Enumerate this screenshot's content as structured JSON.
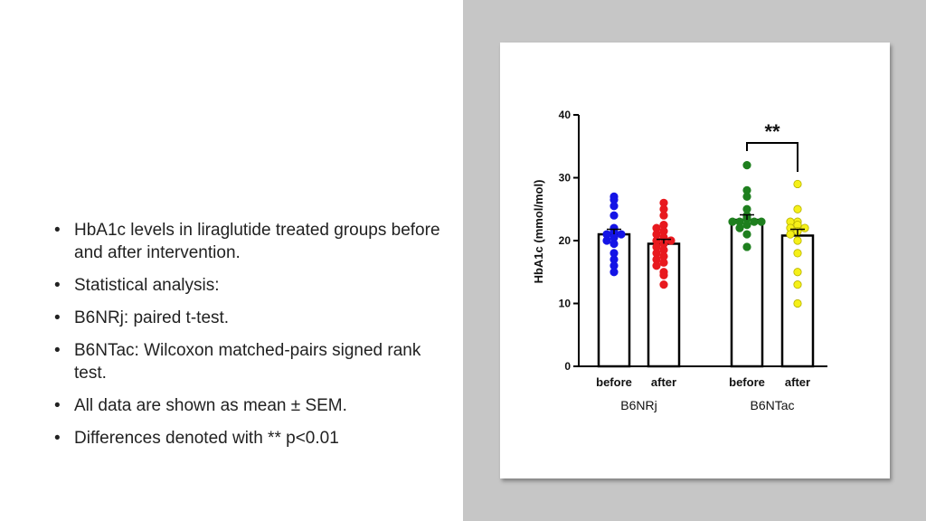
{
  "bullets": [
    "HbA1c levels in liraglutide treated groups before and after intervention.",
    "Statistical analysis:",
    "B6NRj:  paired t-test.",
    "B6NTac: Wilcoxon matched-pairs signed rank test.",
    "All data are shown as mean ± SEM.",
    "Differences denoted with ** p<0.01"
  ],
  "chart_data": {
    "type": "bar",
    "ylabel": "HbA1c (mmol/mol)",
    "ylim": [
      0,
      40
    ],
    "yticks": [
      "0",
      "10",
      "20",
      "30",
      "40"
    ],
    "categories": [
      "before",
      "after",
      "before",
      "after"
    ],
    "groups": [
      {
        "name": "B6NRj",
        "categories": [
          "before",
          "after"
        ]
      },
      {
        "name": "B6NTac",
        "categories": [
          "before",
          "after"
        ]
      }
    ],
    "bars": [
      {
        "group": "B6NRj",
        "label": "before",
        "mean": 21.0,
        "sem": 0.8,
        "color": "#1414e6",
        "points": [
          27,
          26.5,
          25.5,
          24,
          22,
          21.5,
          21,
          21,
          20.5,
          20,
          19.5,
          18,
          17,
          16,
          15
        ]
      },
      {
        "group": "B6NRj",
        "label": "after",
        "mean": 19.5,
        "sem": 0.7,
        "color": "#e8191e",
        "points": [
          26,
          25,
          24,
          22.5,
          22,
          21.5,
          21,
          20.5,
          20,
          20,
          19.5,
          19,
          18.5,
          18,
          17.5,
          17,
          16.5,
          16,
          15,
          14.5,
          13
        ]
      },
      {
        "group": "B6NTac",
        "label": "before",
        "mean": 23.3,
        "sem": 0.8,
        "color": "#1e7f1e",
        "points": [
          32,
          28,
          27,
          25,
          24,
          23.5,
          23,
          23,
          23,
          23,
          22.5,
          22,
          21,
          19
        ]
      },
      {
        "group": "B6NTac",
        "label": "after",
        "mean": 20.8,
        "sem": 1.0,
        "color": "#f5f018",
        "points": [
          29,
          25,
          23,
          23,
          22.5,
          22,
          22,
          21.5,
          21,
          20,
          18,
          15,
          13,
          10
        ]
      }
    ],
    "significance": {
      "from": 2,
      "to": 3,
      "label": "**"
    },
    "legend": "none",
    "grid": false
  }
}
